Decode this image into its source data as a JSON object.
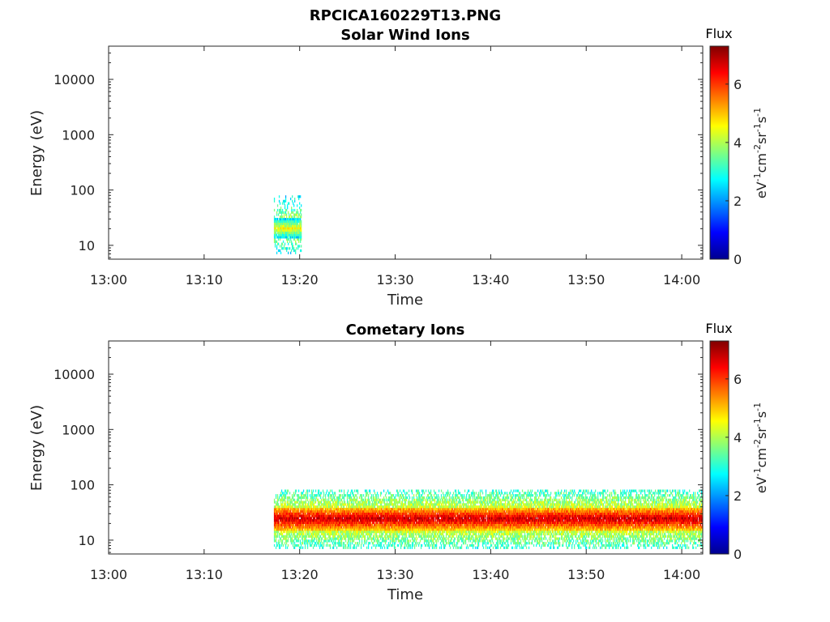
{
  "figure_title": "RPCICA160229T13.PNG",
  "chart_data": [
    {
      "type": "heatmap",
      "id": "solar",
      "title": "Solar Wind Ions",
      "xlabel": "Time",
      "ylabel": "Energy (eV)",
      "x_ticks": [
        "13:00",
        "13:10",
        "13:20",
        "13:30",
        "13:40",
        "13:50",
        "14:00"
      ],
      "y_ticks": [
        "10",
        "100",
        "1000",
        "10000"
      ],
      "x_range_minutes": [
        0,
        62.2
      ],
      "y_range_log10": [
        0.75,
        4.6
      ],
      "y_scale": "log",
      "colorbar": {
        "title": "Flux",
        "label_parts": [
          "eV",
          "-1",
          "cm",
          "-2",
          "sr",
          "-1",
          "s",
          "-1"
        ],
        "ticks": [
          "0",
          "2",
          "4",
          "6"
        ],
        "range": [
          0,
          7.3
        ],
        "colormap": "jet"
      },
      "blocks": [
        {
          "t0": 17.3,
          "t1": 20.2,
          "e0": 7,
          "e1": 80,
          "core_lo": 14,
          "core_hi": 30,
          "core_level": 4.0,
          "edge_level": 2.6,
          "density": 0.45
        }
      ]
    },
    {
      "type": "heatmap",
      "id": "cometary",
      "title": "Cometary Ions",
      "xlabel": "Time",
      "ylabel": "Energy (eV)",
      "x_ticks": [
        "13:00",
        "13:10",
        "13:20",
        "13:30",
        "13:40",
        "13:50",
        "14:00"
      ],
      "y_ticks": [
        "10",
        "100",
        "1000",
        "10000"
      ],
      "x_range_minutes": [
        0,
        62.2
      ],
      "y_range_log10": [
        0.75,
        4.6
      ],
      "y_scale": "log",
      "colorbar": {
        "title": "Flux",
        "label_parts": [
          "eV",
          "-1",
          "cm",
          "-2",
          "sr",
          "-1",
          "s",
          "-1"
        ],
        "ticks": [
          "0",
          "2",
          "4",
          "6"
        ],
        "range": [
          0,
          7.3
        ],
        "colormap": "jet"
      },
      "blocks": [
        {
          "t0": 17.3,
          "t1": 62.2,
          "e0": 7,
          "e1": 82,
          "core_lo": 15,
          "core_hi": 40,
          "core_level": 6.2,
          "edge_level": 3.0,
          "density": 0.9
        }
      ]
    }
  ]
}
